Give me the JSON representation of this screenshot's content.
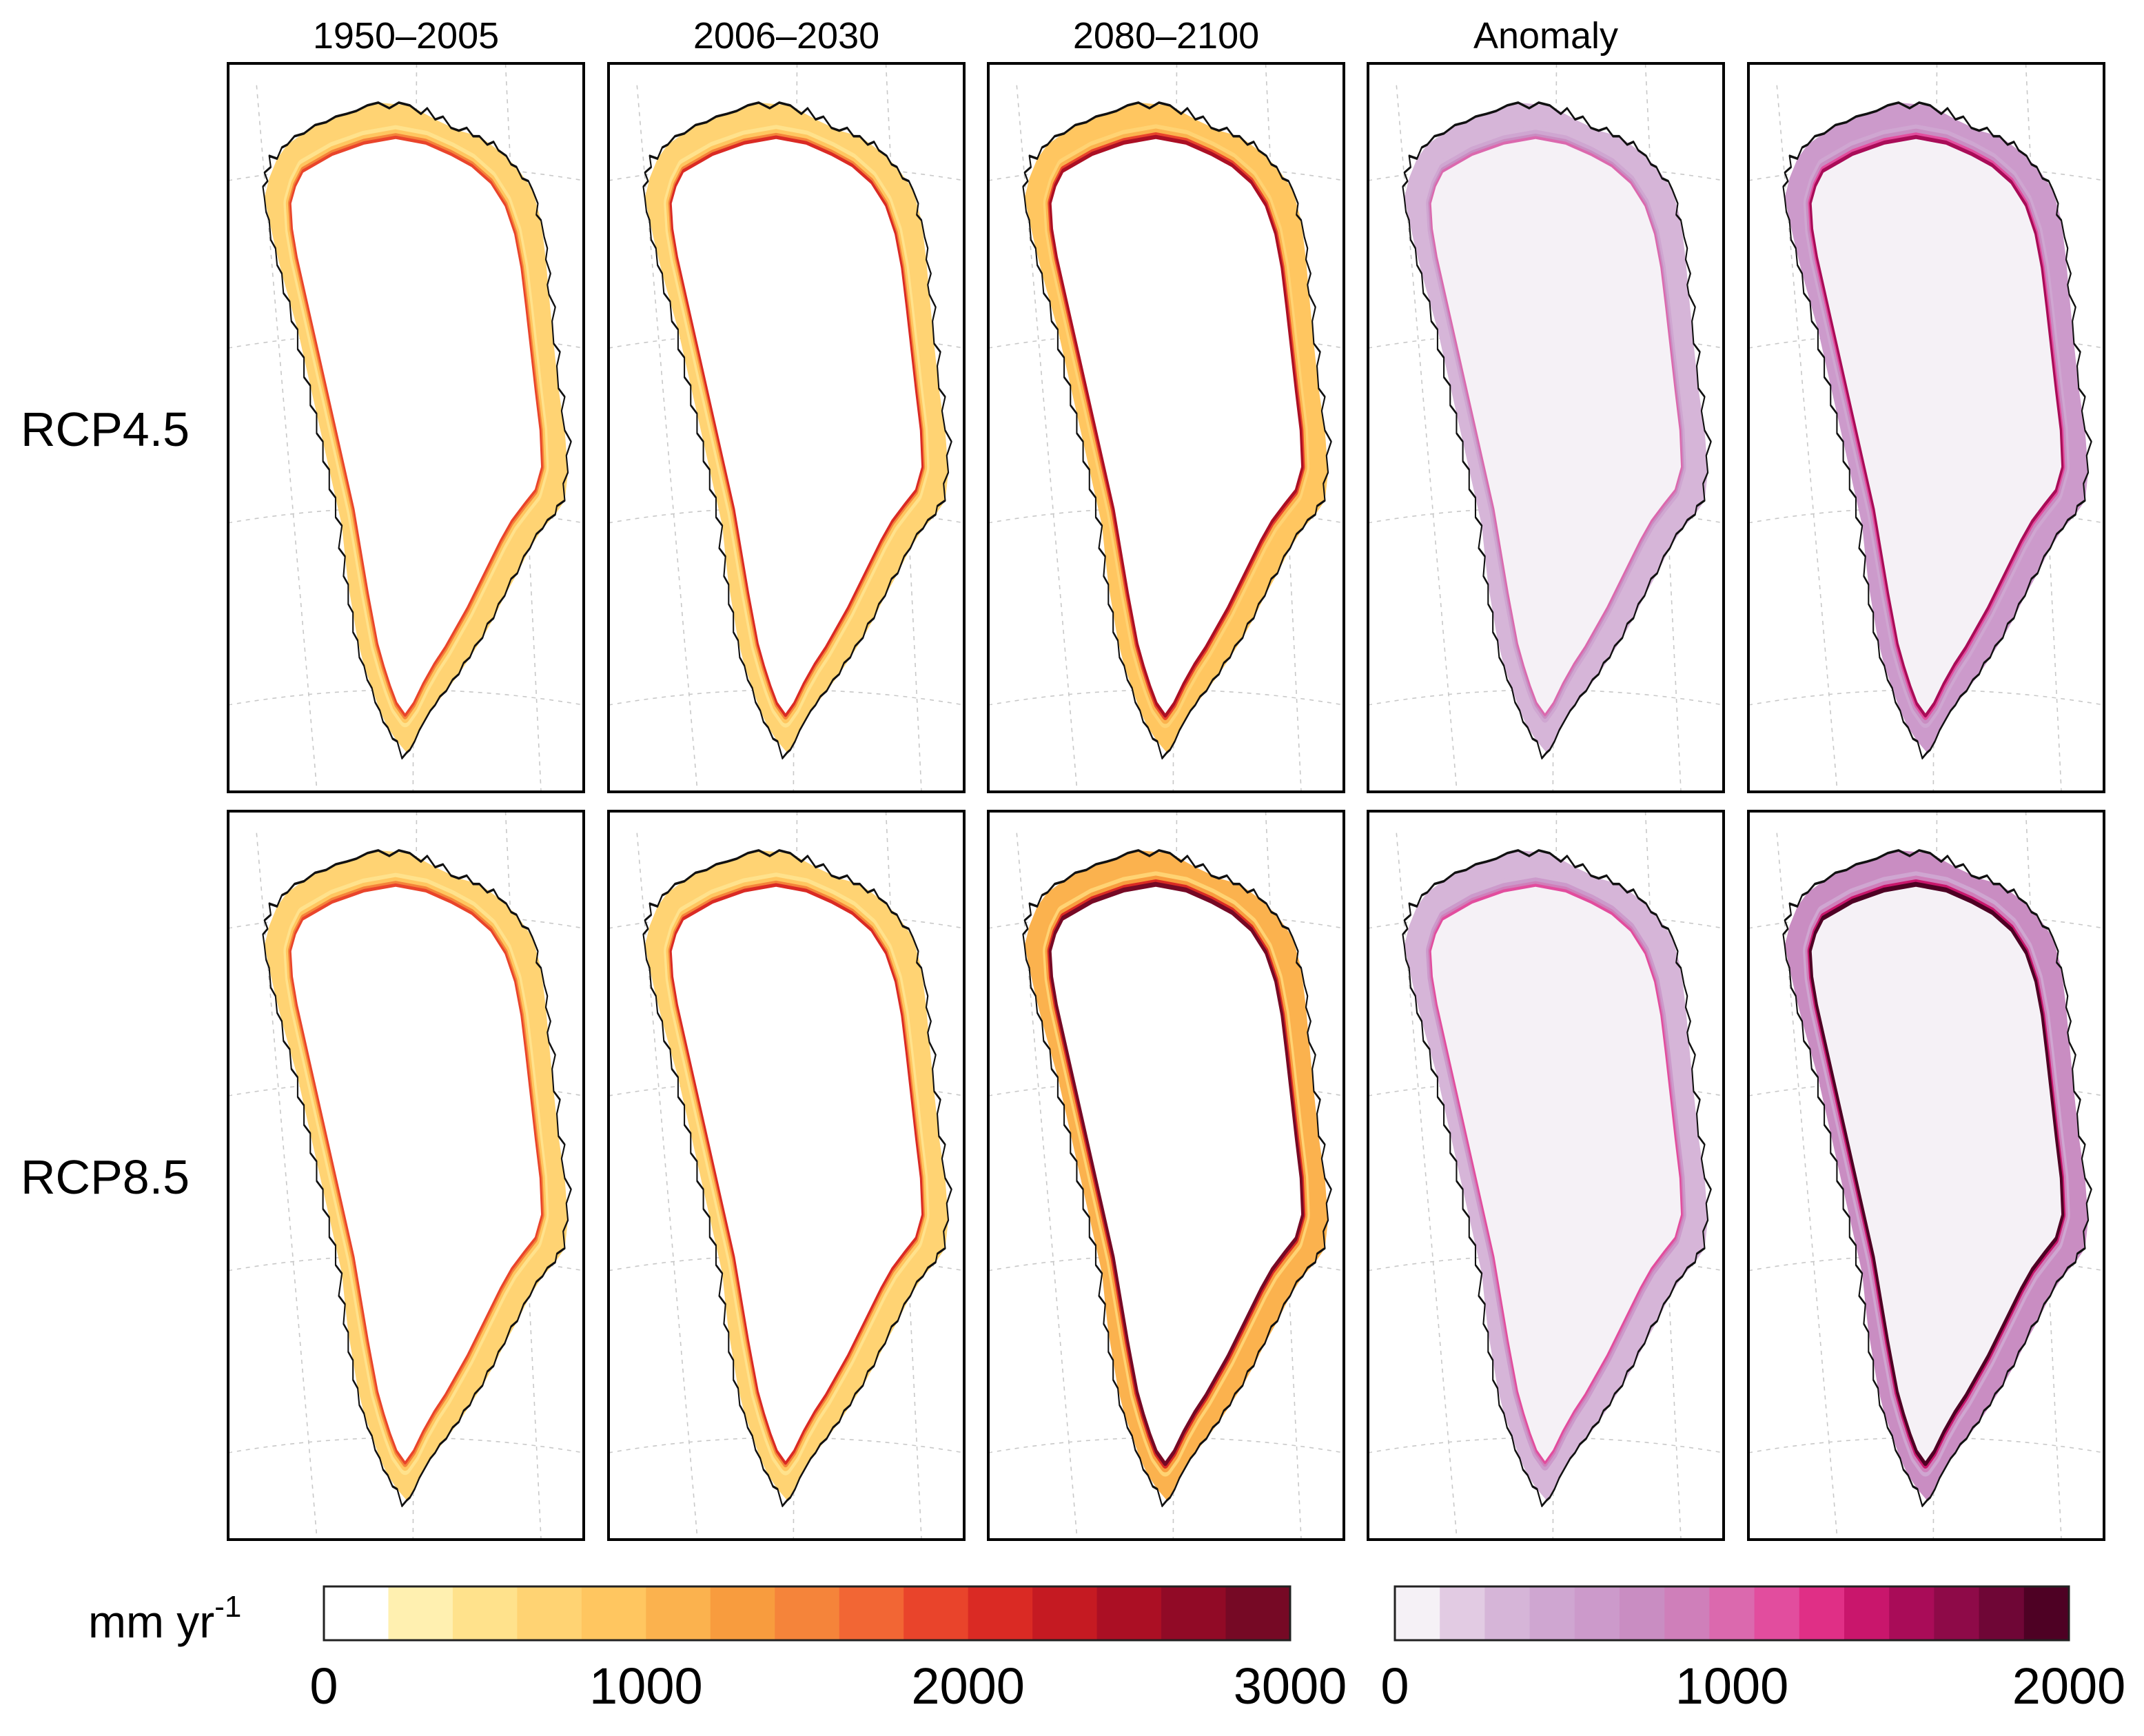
{
  "figure": {
    "columns": [
      {
        "title": "1950–2005",
        "palette": "heat"
      },
      {
        "title": "2006–2030",
        "palette": "heat"
      },
      {
        "title": "2080–2100",
        "palette": "heat"
      },
      {
        "title": "Anomaly",
        "palette": "anomaly"
      },
      {
        "title": "",
        "palette": "anomaly"
      }
    ],
    "rows": [
      {
        "label": "RCP4.5",
        "intensity": [
          0.45,
          0.55,
          0.75,
          0.3,
          0.7
        ]
      },
      {
        "label": "RCP8.5",
        "intensity": [
          0.45,
          0.55,
          1.0,
          0.35,
          1.0
        ]
      }
    ]
  },
  "colorbars": {
    "unit_label": "mm yr",
    "unit_exponent": "-1",
    "heat": {
      "min": 0,
      "max": 3000,
      "ticks": [
        0,
        1000,
        2000,
        3000
      ],
      "tick_labels": [
        "0",
        "1000",
        "2000",
        "3000"
      ],
      "colors": [
        "#ffffff",
        "#fff0b0",
        "#ffe28c",
        "#ffd373",
        "#ffc660",
        "#fbb24e",
        "#f89c3e",
        "#f5843a",
        "#f26634",
        "#e9442b",
        "#da2a24",
        "#c51a22",
        "#ab0f24",
        "#910a26",
        "#760925"
      ]
    },
    "anomaly": {
      "min": 0,
      "max": 2000,
      "ticks": [
        0,
        1000,
        2000
      ],
      "tick_labels": [
        "0",
        "1000",
        "2000"
      ],
      "colors": [
        "#f5f1f6",
        "#e2cbe3",
        "#d6b5d8",
        "#cfa6d1",
        "#cc9acb",
        "#c98dc2",
        "#cf7fba",
        "#db69ae",
        "#e24d9e",
        "#e02f86",
        "#c9166c",
        "#a90c58",
        "#8e0a48",
        "#6f0636",
        "#4e0124"
      ]
    }
  }
}
